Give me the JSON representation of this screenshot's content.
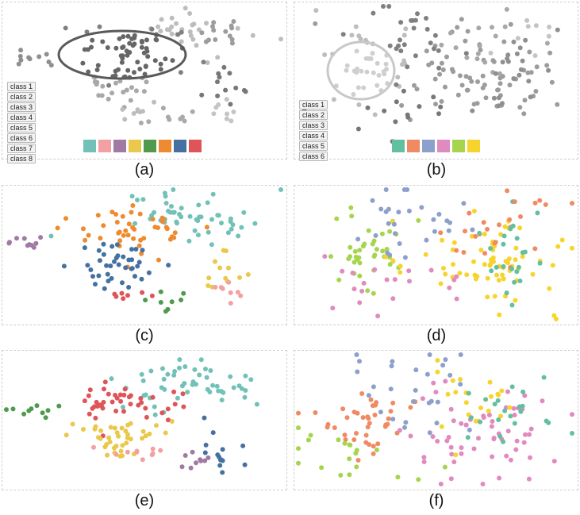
{
  "chart_data": [
    {
      "type": "scatter",
      "panel": "a",
      "caption": "(a)",
      "coloring": "grayscale",
      "class_list": [
        "class 1",
        "class 2",
        "class 3",
        "class 4",
        "class 5",
        "class 6",
        "class 7",
        "class 8"
      ],
      "palette": [
        "#72c1b8",
        "#f3a0a2",
        "#a07aa2",
        "#e9c84b",
        "#4f9a4c",
        "#ee8a2f",
        "#44719f",
        "#df5458"
      ],
      "selection": "ellipse",
      "grid": false
    },
    {
      "type": "scatter",
      "panel": "b",
      "caption": "(b)",
      "coloring": "grayscale",
      "class_list": [
        "class 1",
        "class 2",
        "class 3",
        "class 4",
        "class 5",
        "class 6"
      ],
      "palette": [
        "#62c0a0",
        "#ef8a62",
        "#8d9fcb",
        "#e18ac0",
        "#a6d54d",
        "#f7d42d"
      ],
      "selection": "circle",
      "grid": false
    },
    {
      "type": "scatter",
      "panel": "c",
      "caption": "(c)",
      "coloring": "by class",
      "palette_source": "a",
      "grid": false
    },
    {
      "type": "scatter",
      "panel": "d",
      "caption": "(d)",
      "coloring": "by class",
      "palette_source": "b",
      "grid": false
    },
    {
      "type": "scatter",
      "panel": "e",
      "caption": "(e)",
      "coloring": "by class",
      "palette_source": "a",
      "grid": false
    },
    {
      "type": "scatter",
      "panel": "f",
      "caption": "(f)",
      "coloring": "by class",
      "palette_source": "b",
      "grid": false
    }
  ]
}
